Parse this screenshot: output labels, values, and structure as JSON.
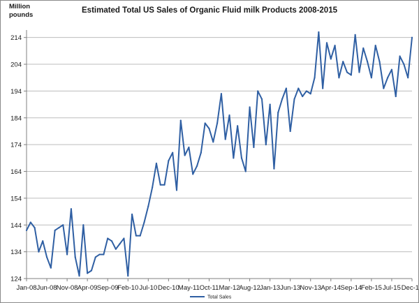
{
  "chart_data": {
    "type": "line",
    "title": "Estimated Total US Sales of Organic Fluid milk Products 2008-2015",
    "ylabel": "Million pounds",
    "ylabel_lines": [
      "Million",
      "pounds"
    ],
    "xlabel": "",
    "ylim": [
      124,
      216
    ],
    "yticks": [
      124,
      134,
      144,
      154,
      164,
      174,
      184,
      194,
      204,
      214
    ],
    "grid": true,
    "legend_position": "bottom",
    "x_tick_labels": [
      "Jan-08",
      "Jun-08",
      "Nov-08",
      "Apr-09",
      "Sep-09",
      "Feb-10",
      "Jul-10",
      "Dec-10",
      "May-11",
      "Oct-11",
      "Mar-12",
      "Aug-12",
      "Jan-13",
      "Jun-13",
      "Nov-13",
      "Apr-14",
      "Sep-14",
      "Feb-15",
      "Jul-15",
      "Dec-15"
    ],
    "x_tick_indices": [
      0,
      5,
      10,
      15,
      20,
      25,
      30,
      35,
      40,
      45,
      50,
      55,
      60,
      65,
      70,
      75,
      80,
      85,
      90,
      95
    ],
    "series": [
      {
        "name": "Total Sales",
        "color": "#2f5fa3",
        "values": [
          142,
          145,
          143,
          134,
          138,
          132,
          128,
          142,
          143,
          144,
          133,
          150,
          132,
          125,
          144,
          126,
          127,
          132,
          133,
          133,
          139,
          138,
          135,
          137,
          139,
          125,
          148,
          140,
          140,
          145,
          151,
          158,
          167,
          159,
          159,
          168,
          171,
          157,
          183,
          170,
          173,
          163,
          166,
          171,
          182,
          180,
          175,
          182,
          193,
          176,
          185,
          169,
          181,
          169,
          164,
          188,
          173,
          194,
          191,
          174,
          189,
          165,
          186,
          191,
          195,
          179,
          191,
          195,
          192,
          194,
          193,
          199,
          216,
          195,
          212,
          206,
          211,
          199,
          205,
          201,
          200,
          215,
          201,
          210,
          205,
          199,
          211,
          205,
          195,
          199,
          202,
          192,
          207,
          204,
          199,
          214
        ]
      }
    ]
  }
}
